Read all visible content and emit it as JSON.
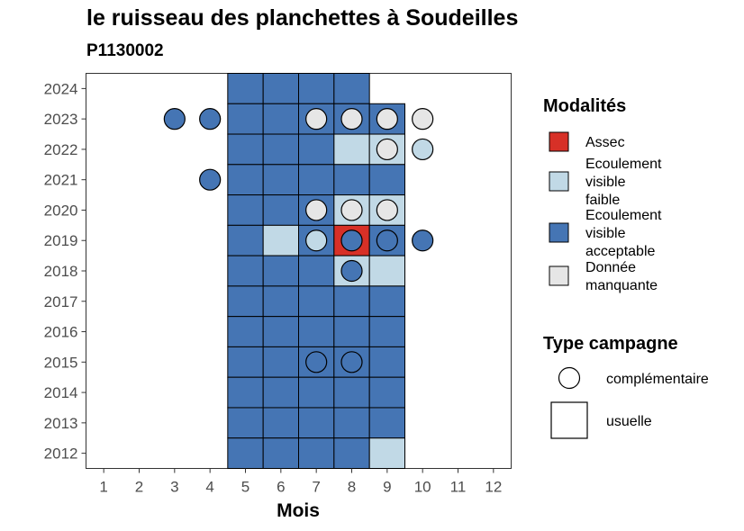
{
  "chart_data": {
    "type": "heatmap",
    "title": "le ruisseau des planchettes à Soudeilles",
    "subtitle": "P1130002",
    "xlabel": "Mois",
    "ylabel": "",
    "x_ticks": [
      "1",
      "2",
      "3",
      "4",
      "5",
      "6",
      "7",
      "8",
      "9",
      "10",
      "11",
      "12"
    ],
    "y_ticks": [
      "2012",
      "2013",
      "2014",
      "2015",
      "2016",
      "2017",
      "2018",
      "2019",
      "2020",
      "2021",
      "2022",
      "2023",
      "2024"
    ],
    "xlim": [
      0.5,
      12.5
    ],
    "ylim": [
      2011.5,
      2024.5
    ],
    "grid": false,
    "legend_position": "right",
    "legend_modalites": {
      "title": "Modalités",
      "items": [
        {
          "key": "assec",
          "lines": [
            "Assec"
          ],
          "color": "#d73027"
        },
        {
          "key": "faible",
          "lines": [
            "Ecoulement",
            "visible",
            "faible"
          ],
          "color": "#c1d9e6"
        },
        {
          "key": "acceptable",
          "lines": [
            "Ecoulement",
            "visible",
            "acceptable"
          ],
          "color": "#4575b4"
        },
        {
          "key": "manquante",
          "lines": [
            "Donnée",
            "manquante"
          ],
          "color": "#e6e6e6"
        }
      ]
    },
    "legend_type": {
      "title": "Type campagne",
      "items": [
        {
          "key": "complementaire",
          "label": "complémentaire",
          "shape": "circle"
        },
        {
          "key": "usuelle",
          "label": "usuelle",
          "shape": "square"
        }
      ]
    },
    "tiles": [
      {
        "year": 2024,
        "month": 5,
        "value": "acceptable"
      },
      {
        "year": 2024,
        "month": 6,
        "value": "acceptable"
      },
      {
        "year": 2024,
        "month": 7,
        "value": "acceptable"
      },
      {
        "year": 2024,
        "month": 8,
        "value": "acceptable"
      },
      {
        "year": 2023,
        "month": 5,
        "value": "acceptable"
      },
      {
        "year": 2023,
        "month": 6,
        "value": "acceptable"
      },
      {
        "year": 2023,
        "month": 7,
        "value": "acceptable"
      },
      {
        "year": 2023,
        "month": 8,
        "value": "acceptable"
      },
      {
        "year": 2023,
        "month": 9,
        "value": "acceptable"
      },
      {
        "year": 2022,
        "month": 5,
        "value": "acceptable"
      },
      {
        "year": 2022,
        "month": 6,
        "value": "acceptable"
      },
      {
        "year": 2022,
        "month": 7,
        "value": "acceptable"
      },
      {
        "year": 2022,
        "month": 8,
        "value": "faible"
      },
      {
        "year": 2022,
        "month": 9,
        "value": "faible"
      },
      {
        "year": 2021,
        "month": 5,
        "value": "acceptable"
      },
      {
        "year": 2021,
        "month": 6,
        "value": "acceptable"
      },
      {
        "year": 2021,
        "month": 7,
        "value": "acceptable"
      },
      {
        "year": 2021,
        "month": 8,
        "value": "acceptable"
      },
      {
        "year": 2021,
        "month": 9,
        "value": "acceptable"
      },
      {
        "year": 2020,
        "month": 5,
        "value": "acceptable"
      },
      {
        "year": 2020,
        "month": 6,
        "value": "acceptable"
      },
      {
        "year": 2020,
        "month": 7,
        "value": "acceptable"
      },
      {
        "year": 2020,
        "month": 8,
        "value": "faible"
      },
      {
        "year": 2020,
        "month": 9,
        "value": "faible"
      },
      {
        "year": 2019,
        "month": 5,
        "value": "acceptable"
      },
      {
        "year": 2019,
        "month": 6,
        "value": "faible"
      },
      {
        "year": 2019,
        "month": 7,
        "value": "acceptable"
      },
      {
        "year": 2019,
        "month": 8,
        "value": "assec"
      },
      {
        "year": 2019,
        "month": 9,
        "value": "acceptable"
      },
      {
        "year": 2018,
        "month": 5,
        "value": "acceptable"
      },
      {
        "year": 2018,
        "month": 6,
        "value": "acceptable"
      },
      {
        "year": 2018,
        "month": 7,
        "value": "acceptable"
      },
      {
        "year": 2018,
        "month": 8,
        "value": "faible"
      },
      {
        "year": 2018,
        "month": 9,
        "value": "faible"
      },
      {
        "year": 2017,
        "month": 5,
        "value": "acceptable"
      },
      {
        "year": 2017,
        "month": 6,
        "value": "acceptable"
      },
      {
        "year": 2017,
        "month": 7,
        "value": "acceptable"
      },
      {
        "year": 2017,
        "month": 8,
        "value": "acceptable"
      },
      {
        "year": 2017,
        "month": 9,
        "value": "acceptable"
      },
      {
        "year": 2016,
        "month": 5,
        "value": "acceptable"
      },
      {
        "year": 2016,
        "month": 6,
        "value": "acceptable"
      },
      {
        "year": 2016,
        "month": 7,
        "value": "acceptable"
      },
      {
        "year": 2016,
        "month": 8,
        "value": "acceptable"
      },
      {
        "year": 2016,
        "month": 9,
        "value": "acceptable"
      },
      {
        "year": 2015,
        "month": 5,
        "value": "acceptable"
      },
      {
        "year": 2015,
        "month": 6,
        "value": "acceptable"
      },
      {
        "year": 2015,
        "month": 7,
        "value": "acceptable"
      },
      {
        "year": 2015,
        "month": 8,
        "value": "acceptable"
      },
      {
        "year": 2015,
        "month": 9,
        "value": "acceptable"
      },
      {
        "year": 2014,
        "month": 5,
        "value": "acceptable"
      },
      {
        "year": 2014,
        "month": 6,
        "value": "acceptable"
      },
      {
        "year": 2014,
        "month": 7,
        "value": "acceptable"
      },
      {
        "year": 2014,
        "month": 8,
        "value": "acceptable"
      },
      {
        "year": 2014,
        "month": 9,
        "value": "acceptable"
      },
      {
        "year": 2013,
        "month": 5,
        "value": "acceptable"
      },
      {
        "year": 2013,
        "month": 6,
        "value": "acceptable"
      },
      {
        "year": 2013,
        "month": 7,
        "value": "acceptable"
      },
      {
        "year": 2013,
        "month": 8,
        "value": "acceptable"
      },
      {
        "year": 2013,
        "month": 9,
        "value": "acceptable"
      },
      {
        "year": 2012,
        "month": 5,
        "value": "acceptable"
      },
      {
        "year": 2012,
        "month": 6,
        "value": "acceptable"
      },
      {
        "year": 2012,
        "month": 7,
        "value": "acceptable"
      },
      {
        "year": 2012,
        "month": 8,
        "value": "acceptable"
      },
      {
        "year": 2012,
        "month": 9,
        "value": "faible"
      }
    ],
    "points": [
      {
        "year": 2023,
        "month": 3,
        "value": "acceptable"
      },
      {
        "year": 2023,
        "month": 4,
        "value": "acceptable"
      },
      {
        "year": 2023,
        "month": 7,
        "value": "manquante"
      },
      {
        "year": 2023,
        "month": 8,
        "value": "manquante"
      },
      {
        "year": 2023,
        "month": 9,
        "value": "manquante"
      },
      {
        "year": 2023,
        "month": 10,
        "value": "manquante"
      },
      {
        "year": 2022,
        "month": 9,
        "value": "manquante"
      },
      {
        "year": 2022,
        "month": 10,
        "value": "faible"
      },
      {
        "year": 2021,
        "month": 4,
        "value": "acceptable"
      },
      {
        "year": 2020,
        "month": 7,
        "value": "manquante"
      },
      {
        "year": 2020,
        "month": 8,
        "value": "manquante"
      },
      {
        "year": 2020,
        "month": 9,
        "value": "manquante"
      },
      {
        "year": 2019,
        "month": 7,
        "value": "faible"
      },
      {
        "year": 2019,
        "month": 8,
        "value": "acceptable"
      },
      {
        "year": 2019,
        "month": 9,
        "value": "acceptable"
      },
      {
        "year": 2019,
        "month": 10,
        "value": "acceptable"
      },
      {
        "year": 2018,
        "month": 8,
        "value": "acceptable"
      },
      {
        "year": 2015,
        "month": 7,
        "value": "acceptable"
      },
      {
        "year": 2015,
        "month": 8,
        "value": "acceptable"
      }
    ]
  }
}
